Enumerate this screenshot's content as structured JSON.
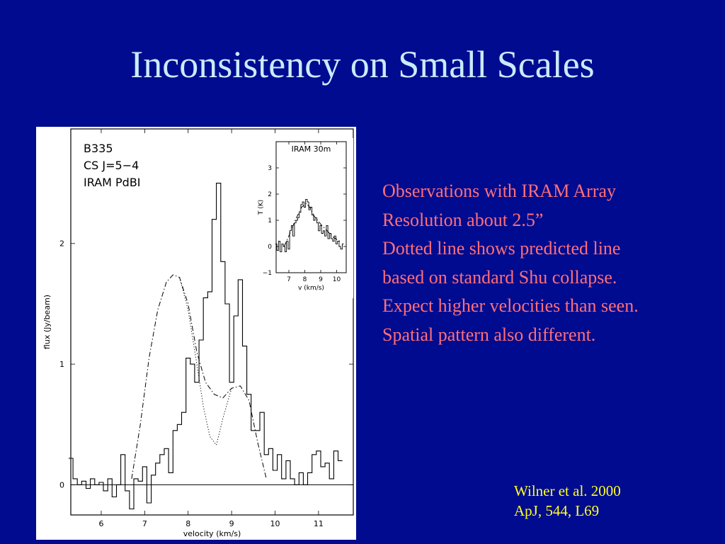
{
  "slide": {
    "title": "Inconsistency on Small Scales",
    "colors": {
      "background": "#000b8f",
      "title": "#c8ecff",
      "notes": "#ff6f78",
      "citation": "#ffff22"
    }
  },
  "notes": [
    "Observations with IRAM Array",
    "Resolution about 2.5”",
    "Dotted line shows predicted line",
    "based on standard Shu collapse.",
    "Expect higher velocities than seen.",
    "Spatial pattern also different."
  ],
  "citation": [
    "Wilner et al. 2000",
    "ApJ, 544, L69"
  ],
  "chart_data": [
    {
      "type": "line",
      "annotation_lines": [
        "B335",
        "CS J=5−4",
        "IRAM PdBI"
      ],
      "xlabel": "velocity (km/s)",
      "ylabel": "flux (Jy/beam)",
      "xlim": [
        5.3,
        11.8
      ],
      "ylim": [
        -0.25,
        2.95
      ],
      "xticks": [
        6,
        7,
        8,
        9,
        10,
        11
      ],
      "yticks": [
        0,
        1,
        2
      ],
      "zero_line": true,
      "series": [
        {
          "style": "histogram",
          "x": [
            5.3,
            5.4,
            5.5,
            5.6,
            5.7,
            5.8,
            5.9,
            6.0,
            6.1,
            6.2,
            6.3,
            6.4,
            6.5,
            6.6,
            6.7,
            6.8,
            6.9,
            7.0,
            7.1,
            7.2,
            7.3,
            7.4,
            7.5,
            7.6,
            7.7,
            7.8,
            7.9,
            8.0,
            8.1,
            8.2,
            8.3,
            8.4,
            8.5,
            8.6,
            8.7,
            8.8,
            8.9,
            9.0,
            9.1,
            9.2,
            9.3,
            9.4,
            9.5,
            9.6,
            9.7,
            9.8,
            9.9,
            10.0,
            10.1,
            10.2,
            10.3,
            10.4,
            10.5,
            10.6,
            10.7,
            10.8,
            10.9,
            11.0,
            11.1,
            11.2,
            11.3,
            11.4,
            11.5
          ],
          "y": [
            0.22,
            0.05,
            0.0,
            0.03,
            -0.03,
            0.05,
            0.0,
            0.02,
            -0.05,
            0.05,
            -0.1,
            0.0,
            0.25,
            -0.05,
            -0.2,
            0.05,
            0.03,
            0.15,
            -0.15,
            0.08,
            0.18,
            0.25,
            0.3,
            0.1,
            0.45,
            0.5,
            0.6,
            1.05,
            1.0,
            0.85,
            1.2,
            1.55,
            1.6,
            2.2,
            2.5,
            1.85,
            1.5,
            0.85,
            1.4,
            1.7,
            1.15,
            0.75,
            0.45,
            0.45,
            0.6,
            0.25,
            0.3,
            0.12,
            0.25,
            0.05,
            0.2,
            0.05,
            0.0,
            0.1,
            0.0,
            0.1,
            0.25,
            0.28,
            0.15,
            0.18,
            0.05,
            0.28,
            0.2
          ]
        },
        {
          "style": "dash-dot",
          "x": [
            6.7,
            6.9,
            7.1,
            7.3,
            7.5,
            7.65,
            7.8,
            8.0,
            8.2,
            8.4,
            8.6,
            8.8,
            9.0,
            9.2,
            9.4,
            9.6,
            9.8
          ],
          "y": [
            0.05,
            0.5,
            1.05,
            1.45,
            1.68,
            1.74,
            1.72,
            1.5,
            1.1,
            0.85,
            0.75,
            0.72,
            0.8,
            0.82,
            0.7,
            0.35,
            0.05
          ]
        },
        {
          "style": "dotted",
          "x": [
            7.8,
            8.0,
            8.2,
            8.35,
            8.5,
            8.65,
            8.8,
            9.0
          ],
          "y": [
            1.72,
            1.45,
            1.0,
            0.65,
            0.4,
            0.33,
            0.55,
            0.8
          ]
        }
      ]
    },
    {
      "type": "line",
      "title": "IRAM 30m",
      "xlabel": "v (km/s)",
      "ylabel": "T (K)",
      "xlim": [
        6.2,
        10.6
      ],
      "ylim": [
        -1,
        4
      ],
      "xticks": [
        7,
        8,
        9,
        10
      ],
      "yticks": [
        -1,
        0,
        1,
        2,
        3
      ],
      "series": [
        {
          "style": "histogram",
          "x": [
            6.2,
            6.3,
            6.4,
            6.5,
            6.6,
            6.7,
            6.8,
            6.9,
            7.0,
            7.1,
            7.2,
            7.3,
            7.4,
            7.5,
            7.6,
            7.7,
            7.8,
            7.9,
            8.0,
            8.1,
            8.2,
            8.3,
            8.4,
            8.5,
            8.6,
            8.7,
            8.8,
            8.9,
            9.0,
            9.1,
            9.2,
            9.3,
            9.4,
            9.5,
            9.6,
            9.7,
            9.8,
            9.9,
            10.0,
            10.1,
            10.2,
            10.3,
            10.4
          ],
          "y": [
            0.1,
            -0.15,
            0.2,
            -0.2,
            0.1,
            0.0,
            -0.2,
            0.2,
            -0.1,
            0.6,
            0.8,
            0.4,
            0.9,
            1.0,
            1.1,
            1.3,
            1.6,
            1.7,
            1.5,
            1.8,
            1.7,
            1.4,
            1.5,
            1.2,
            1.0,
            1.1,
            0.9,
            0.6,
            0.8,
            0.5,
            0.6,
            0.4,
            0.8,
            0.3,
            0.5,
            0.3,
            0.2,
            0.4,
            0.1,
            0.2,
            0.0,
            -0.1,
            0.1
          ]
        },
        {
          "style": "dash-dot",
          "x": [
            6.7,
            7.0,
            7.4,
            7.8,
            8.1,
            8.3,
            8.6,
            9.0,
            9.4,
            9.8,
            10.2
          ],
          "y": [
            0.0,
            0.4,
            1.0,
            1.5,
            1.65,
            1.5,
            1.15,
            0.85,
            0.6,
            0.35,
            0.2
          ]
        }
      ]
    }
  ]
}
